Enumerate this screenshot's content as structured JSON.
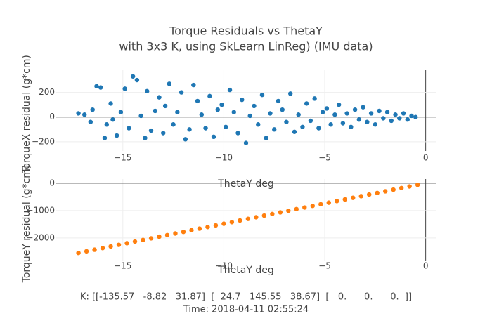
{
  "chart_data": [
    {
      "type": "scatter",
      "title": "Torque Residuals vs ThetaY",
      "subtitle": "with 3x3 K, using SkLearn LinReg) (IMU data)",
      "xlabel": "ThetaY deg",
      "ylabel": "TorqueX residual (g*cm)",
      "color": "#1f77b4",
      "grid": true,
      "xlim": [
        -18.3,
        0.5
      ],
      "ylim": [
        -275,
        380
      ],
      "xticks": [
        {
          "value": -15,
          "label": "−15"
        },
        {
          "value": -10,
          "label": "−10"
        },
        {
          "value": -5,
          "label": "−5"
        },
        0
      ],
      "yticks": [
        {
          "value": -200,
          "label": "−200"
        },
        0,
        200
      ],
      "x": [
        -17.2,
        -16.9,
        -16.6,
        -16.5,
        -16.3,
        -16.1,
        -15.9,
        -15.8,
        -15.6,
        -15.5,
        -15.3,
        -15.1,
        -14.9,
        -14.7,
        -14.5,
        -14.3,
        -14.1,
        -13.9,
        -13.8,
        -13.6,
        -13.4,
        -13.2,
        -13.0,
        -12.9,
        -12.7,
        -12.5,
        -12.3,
        -12.1,
        -11.9,
        -11.7,
        -11.5,
        -11.3,
        -11.1,
        -10.9,
        -10.7,
        -10.5,
        -10.3,
        -10.1,
        -9.9,
        -9.7,
        -9.5,
        -9.3,
        -9.1,
        -8.9,
        -8.7,
        -8.5,
        -8.3,
        -8.1,
        -7.9,
        -7.7,
        -7.5,
        -7.3,
        -7.1,
        -6.9,
        -6.7,
        -6.5,
        -6.3,
        -6.1,
        -5.9,
        -5.7,
        -5.5,
        -5.3,
        -5.1,
        -4.9,
        -4.7,
        -4.5,
        -4.3,
        -4.1,
        -3.9,
        -3.7,
        -3.5,
        -3.3,
        -3.1,
        -2.9,
        -2.7,
        -2.5,
        -2.3,
        -2.1,
        -1.9,
        -1.7,
        -1.5,
        -1.3,
        -1.1,
        -0.9,
        -0.7,
        -0.5
      ],
      "y": [
        30,
        20,
        -40,
        60,
        250,
        240,
        -170,
        -60,
        110,
        -20,
        -150,
        40,
        230,
        -90,
        330,
        300,
        10,
        -170,
        210,
        -110,
        50,
        160,
        -130,
        90,
        270,
        -60,
        40,
        200,
        -180,
        -100,
        260,
        130,
        20,
        -90,
        170,
        -160,
        60,
        100,
        -80,
        220,
        40,
        -130,
        140,
        -210,
        10,
        90,
        -60,
        180,
        -170,
        30,
        -100,
        130,
        60,
        -40,
        190,
        -120,
        20,
        -80,
        110,
        -30,
        150,
        -90,
        40,
        70,
        -60,
        20,
        100,
        -50,
        30,
        -80,
        60,
        -20,
        80,
        -40,
        30,
        -60,
        50,
        -10,
        40,
        -30,
        20,
        -10,
        30,
        -20,
        10,
        0
      ],
      "annotations": [
        "K: [[-135.57   -8.82   31.87]  [  24.7   145.55   38.67]  [   0.      0.      0.  ]]",
        "Time: 2018-04-11 02:55:24"
      ]
    },
    {
      "type": "scatter",
      "xlabel": "ThetaY deg",
      "ylabel": "TorqueY residual (g*cm)",
      "color": "#ff7f0e",
      "grid": true,
      "xlim": [
        -18.3,
        0.5
      ],
      "ylim": [
        -2850,
        150
      ],
      "xticks": [
        {
          "value": -15,
          "label": "−15"
        },
        {
          "value": -10,
          "label": "−10"
        },
        {
          "value": -5,
          "label": "−5"
        },
        0
      ],
      "yticks": [
        {
          "value": -2000,
          "label": "−2000"
        },
        {
          "value": -1000,
          "label": "−1000"
        },
        0
      ],
      "x": [
        -17.2,
        -16.8,
        -16.4,
        -16.0,
        -15.6,
        -15.2,
        -14.8,
        -14.4,
        -14.0,
        -13.6,
        -13.2,
        -12.8,
        -12.4,
        -12.0,
        -11.6,
        -11.2,
        -10.8,
        -10.4,
        -10.0,
        -9.6,
        -9.2,
        -8.8,
        -8.4,
        -8.0,
        -7.6,
        -7.2,
        -6.8,
        -6.4,
        -6.0,
        -5.6,
        -5.2,
        -4.8,
        -4.4,
        -4.0,
        -3.6,
        -3.2,
        -2.8,
        -2.4,
        -2.0,
        -1.6,
        -1.2,
        -0.8,
        -0.4
      ],
      "y": [
        -2547,
        -2488,
        -2429,
        -2370,
        -2310,
        -2251,
        -2192,
        -2133,
        -2074,
        -2014,
        -1955,
        -1896,
        -1837,
        -1778,
        -1718,
        -1659,
        -1600,
        -1541,
        -1481,
        -1422,
        -1363,
        -1304,
        -1245,
        -1185,
        -1126,
        -1067,
        -1008,
        -949,
        -889,
        -830,
        -771,
        -712,
        -653,
        -593,
        -534,
        -475,
        -416,
        -357,
        -297,
        -238,
        -179,
        -120,
        -61
      ]
    }
  ]
}
